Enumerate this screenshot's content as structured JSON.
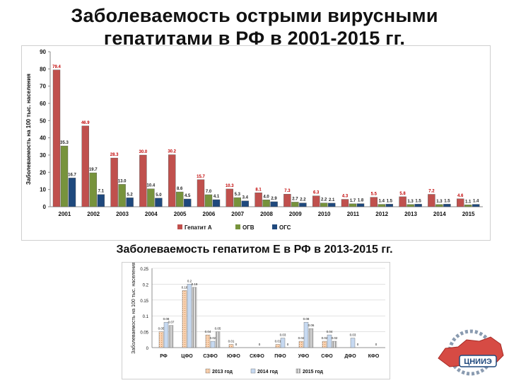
{
  "header": {
    "title_line1": "Заболеваемость острыми вирусными",
    "title_line2": "гепатитами в РФ в 2001-2015 гг.",
    "subtitle": "Заболеваемость гепатитом Е в РФ в 2013-2015 гг."
  },
  "logo": {
    "text": "ЦНИИЭ"
  },
  "chart_data": [
    {
      "type": "bar",
      "ylabel": "Заболеваемость на 100 тыс. населения",
      "ylim": [
        0,
        90
      ],
      "yticks": [
        0,
        10,
        20,
        30,
        40,
        50,
        60,
        70,
        80,
        90
      ],
      "grid": false,
      "legend": "bottom",
      "categories": [
        "2001",
        "2002",
        "2003",
        "2004",
        "2005",
        "2006",
        "2007",
        "2008",
        "2009",
        "2010",
        "2011",
        "2012",
        "2013",
        "2014",
        "2015"
      ],
      "series": [
        {
          "name": "Гепатит А",
          "color": "#c0504d",
          "label_color": "#c00000",
          "values": [
            79.4,
            46.9,
            28.3,
            30.0,
            30.2,
            15.7,
            10.3,
            8.1,
            7.3,
            6.3,
            4.3,
            5.5,
            5.8,
            7.2,
            4.6
          ],
          "labels": [
            "79.4",
            "46.9",
            "28.3",
            "30.0",
            "30.2",
            "15.7",
            "10.3",
            "8.1",
            "7.3",
            "6.3",
            "4.3",
            "5.5",
            "5.8",
            "7.2",
            "4.6"
          ]
        },
        {
          "name": "ОГВ",
          "color": "#77933c",
          "label_color": "#222222",
          "values": [
            35.3,
            19.7,
            13.0,
            10.4,
            8.6,
            7.0,
            5.3,
            4.0,
            2.7,
            2.2,
            1.7,
            1.4,
            1.3,
            1.3,
            1.1
          ],
          "labels": [
            "35.3",
            "19.7",
            "13.0",
            "10.4",
            "8.6",
            "7.0",
            "5.3",
            "4.0",
            "2.7",
            "2.2",
            "1.7",
            "1.4",
            "1.3",
            "1.3",
            "1.1"
          ]
        },
        {
          "name": "ОГС",
          "color": "#1f497d",
          "label_color": "#222222",
          "values": [
            16.7,
            7.1,
            5.2,
            5.0,
            4.5,
            4.1,
            3.4,
            2.9,
            2.2,
            2.1,
            1.8,
            1.5,
            1.5,
            1.5,
            1.4
          ],
          "labels": [
            "16.7",
            "7.1",
            "5.2",
            "5.0",
            "4.5",
            "4.1",
            "3.4",
            "2.9",
            "2.2",
            "2.1",
            "1.8",
            "1.5",
            "1.5",
            "1.5",
            "1.4"
          ]
        }
      ]
    },
    {
      "type": "bar",
      "ylabel": "Заболеваемость на 100 тыс. населения",
      "ylim": [
        0,
        0.25
      ],
      "yticks": [
        0,
        0.05,
        0.1,
        0.15,
        0.2,
        0.25
      ],
      "ytick_labels": [
        "0",
        "0.05",
        "0.1",
        "0.15",
        "0.2",
        "0.25"
      ],
      "grid": true,
      "legend": "bottom",
      "categories": [
        "РФ",
        "ЦФО",
        "СЗФО",
        "ЮФО",
        "СКФО",
        "ПФО",
        "УФО",
        "СФО",
        "ДФО",
        "КФО"
      ],
      "series": [
        {
          "name": "2013 год",
          "color": "#fbd5b5",
          "hatch": true,
          "values": [
            0.05,
            0.18,
            0.04,
            0.01,
            0,
            0.01,
            0.02,
            0.02,
            0,
            0
          ],
          "labels": [
            "0.05",
            "0.18",
            "0.04",
            "0.01",
            "",
            "0.01",
            "0.02",
            "0.02",
            "",
            ""
          ]
        },
        {
          "name": "2014 год",
          "color": "#c6d9f1",
          "values": [
            0.08,
            0.2,
            0.02,
            0,
            0,
            0.03,
            0.08,
            0.04,
            0.03,
            0
          ],
          "labels": [
            "0.08",
            "0.2",
            "0.02",
            "0",
            "0",
            "0.03",
            "0.08",
            "0.04",
            "0.03",
            "0"
          ]
        },
        {
          "name": "2015 год",
          "color": "#c9c9c9",
          "hatch_v": true,
          "values": [
            0.07,
            0.19,
            0.05,
            0,
            0,
            0,
            0.06,
            0.02,
            0,
            0
          ],
          "labels": [
            "0.07",
            "0.19",
            "0.05",
            "",
            "",
            "0",
            "0.06",
            "0.02",
            "0",
            ""
          ]
        }
      ]
    }
  ]
}
